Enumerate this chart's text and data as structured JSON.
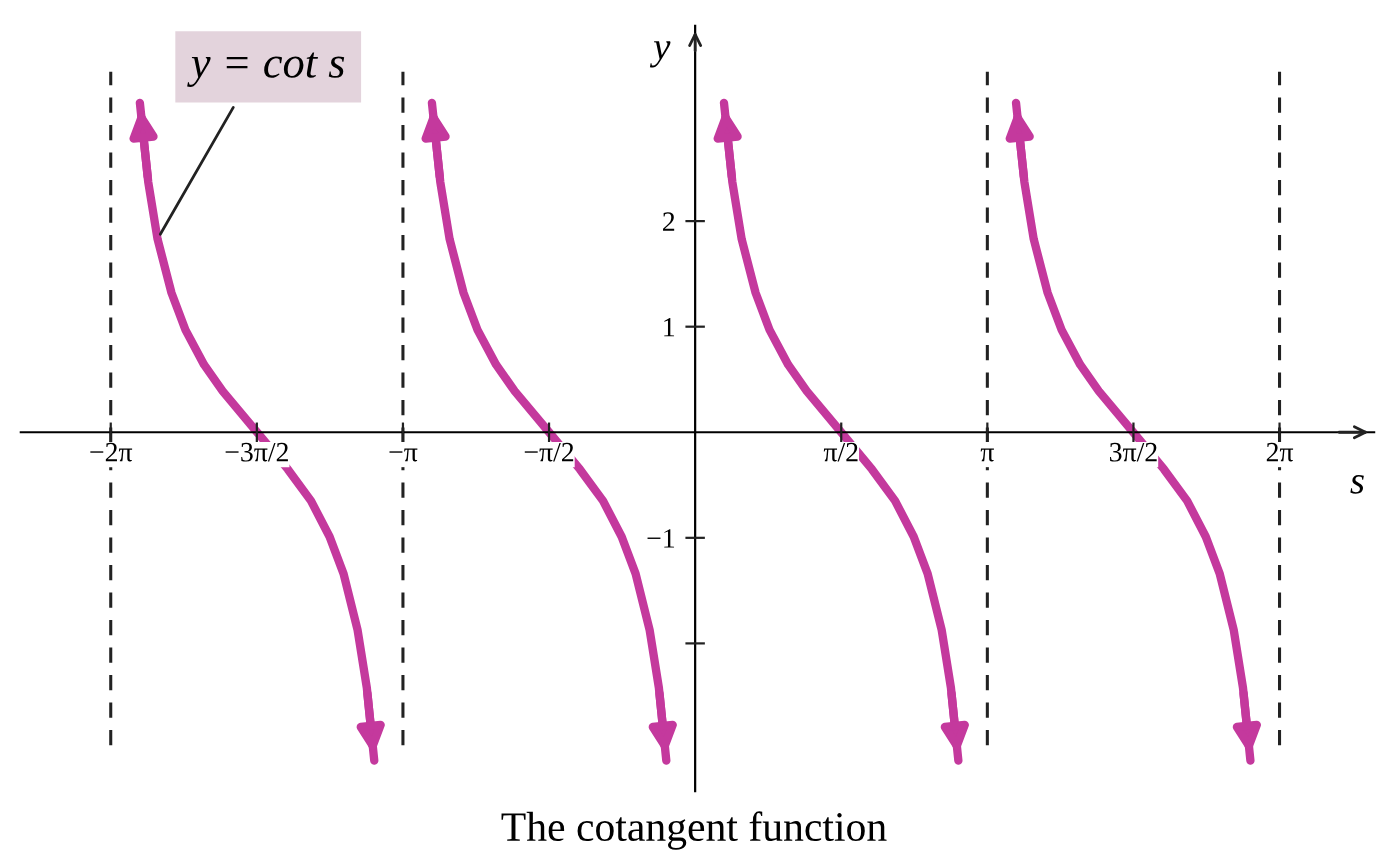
{
  "chart_data": {
    "type": "line",
    "title": "The cotangent function",
    "xlabel": "s",
    "ylabel": "y",
    "xlim": [
      -7.25,
      7.3
    ],
    "ylim": [
      -3.4,
      3.85
    ],
    "xticks": [
      {
        "value": -6.2832,
        "label": "−2π"
      },
      {
        "value": -4.7124,
        "label": "−3π/2"
      },
      {
        "value": -3.1416,
        "label": "−π"
      },
      {
        "value": -1.5708,
        "label": "−π/2"
      },
      {
        "value": 1.5708,
        "label": "π/2"
      },
      {
        "value": 3.1416,
        "label": "π"
      },
      {
        "value": 4.7124,
        "label": "3π/2"
      },
      {
        "value": 6.2832,
        "label": "2π"
      }
    ],
    "yticks": [
      {
        "value": -2,
        "label": null
      },
      -1,
      1,
      2
    ],
    "grid": false,
    "marker": "none",
    "line_style": "solid",
    "series": [
      {
        "color": "#c4399d",
        "x": [
          -5.97,
          -5.88,
          -5.78,
          -5.63,
          -5.48,
          -5.28,
          -5.08,
          -4.71,
          -4.38,
          -4.13,
          -3.93,
          -3.78,
          -3.63,
          -3.53,
          -3.45
        ],
        "values": [
          3.12,
          2.37,
          1.83,
          1.32,
          0.97,
          0.64,
          0.39,
          0,
          -0.35,
          -0.65,
          -0.99,
          -1.34,
          -1.87,
          -2.42,
          -3.11
        ]
      },
      {
        "color": "#c4399d",
        "x": [
          -2.83,
          -2.74,
          -2.64,
          -2.49,
          -2.34,
          -2.14,
          -1.94,
          -1.57,
          -1.24,
          -0.99,
          -0.79,
          -0.64,
          -0.49,
          -0.39,
          -0.31
        ],
        "values": [
          3.12,
          2.37,
          1.83,
          1.32,
          0.97,
          0.64,
          0.39,
          0,
          -0.35,
          -0.65,
          -0.99,
          -1.34,
          -1.87,
          -2.42,
          -3.11
        ]
      },
      {
        "color": "#c4399d",
        "x": [
          0.31,
          0.4,
          0.5,
          0.65,
          0.8,
          1.0,
          1.2,
          1.57,
          1.9,
          2.15,
          2.35,
          2.5,
          2.65,
          2.75,
          2.83
        ],
        "values": [
          3.12,
          2.37,
          1.83,
          1.32,
          0.97,
          0.64,
          0.39,
          0,
          -0.35,
          -0.65,
          -0.99,
          -1.34,
          -1.87,
          -2.42,
          -3.11
        ]
      },
      {
        "color": "#c4399d",
        "x": [
          3.45,
          3.54,
          3.64,
          3.79,
          3.94,
          4.14,
          4.34,
          4.71,
          5.04,
          5.29,
          5.49,
          5.64,
          5.79,
          5.89,
          5.97
        ],
        "values": [
          3.12,
          2.37,
          1.83,
          1.32,
          0.97,
          0.64,
          0.39,
          0,
          -0.35,
          -0.65,
          -0.99,
          -1.34,
          -1.87,
          -2.42,
          -3.11
        ]
      }
    ],
    "ref_lines": [
      {
        "axis": "x",
        "value": -6.2832,
        "color": "#222222",
        "line_style": "dashed"
      },
      {
        "axis": "x",
        "value": -3.1416,
        "color": "#222222",
        "line_style": "dashed"
      },
      {
        "axis": "x",
        "value": 3.1416,
        "color": "#222222",
        "line_style": "dashed"
      },
      {
        "axis": "x",
        "value": 6.2832,
        "color": "#222222",
        "line_style": "dashed"
      }
    ],
    "annotations": [
      {
        "text": "y = cot s",
        "x": -5.78,
        "y": 1.83
      }
    ]
  }
}
